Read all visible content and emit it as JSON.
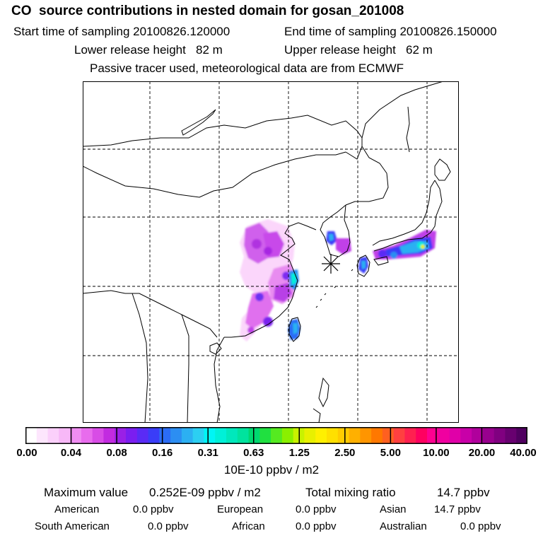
{
  "header": {
    "title": "CO  source contributions in nested domain for gosan_201008",
    "start_label": "Start time of sampling 20100826.120000",
    "end_label": "End time of sampling 20100826.150000",
    "lower_label": "Lower release height   82 m",
    "upper_label": "Upper release height   62 m",
    "tracer_note": "Passive tracer used, meteorological data are from ECMWF"
  },
  "map": {
    "receptor_marker": "asterisk-icon",
    "colors": {
      "coast": "#000000",
      "grid": "#000000"
    }
  },
  "colorbar": {
    "units": "10E-10 ppbv / m2",
    "ticks": [
      "0.00",
      "0.04",
      "0.08",
      "0.16",
      "0.31",
      "0.63",
      "1.25",
      "2.50",
      "5.00",
      "10.00",
      "20.00",
      "40.00"
    ],
    "colors": [
      "#ffffff",
      "#fde6fd",
      "#fbd0fb",
      "#f7b8f7",
      "#f08df2",
      "#e86ced",
      "#d84ce6",
      "#c22be0",
      "#9a20e6",
      "#7b1ef0",
      "#5a2bf5",
      "#3a3df8",
      "#2b6cf5",
      "#2c8ef2",
      "#2cb0f2",
      "#2ccff2",
      "#00f5f5",
      "#00f0d8",
      "#00e8bc",
      "#00e39e",
      "#00d870",
      "#20e040",
      "#55ea20",
      "#8af000",
      "#c8f200",
      "#e8f000",
      "#fff000",
      "#ffe000",
      "#ffcc00",
      "#ffb000",
      "#ff9500",
      "#ff7800",
      "#ff6020",
      "#ff4040",
      "#ff2050",
      "#ff0060",
      "#ff0090",
      "#f000a0",
      "#e000a8",
      "#c800a8",
      "#b0009c",
      "#98008e",
      "#800080",
      "#680070",
      "#500060"
    ]
  },
  "stats": {
    "max_label": "Maximum value",
    "max_value": "0.252E-09 ppbv / m2",
    "total_label": "Total mixing ratio",
    "total_value": "14.7 ppbv",
    "regions": [
      {
        "name": "American",
        "value": "0.0 ppbv"
      },
      {
        "name": "European",
        "value": "0.0 ppbv"
      },
      {
        "name": "Asian",
        "value": "14.7 ppbv"
      },
      {
        "name": "South American",
        "value": "0.0 ppbv"
      },
      {
        "name": "African",
        "value": "0.0 ppbv"
      },
      {
        "name": "Australian",
        "value": "0.0 ppbv"
      }
    ]
  }
}
